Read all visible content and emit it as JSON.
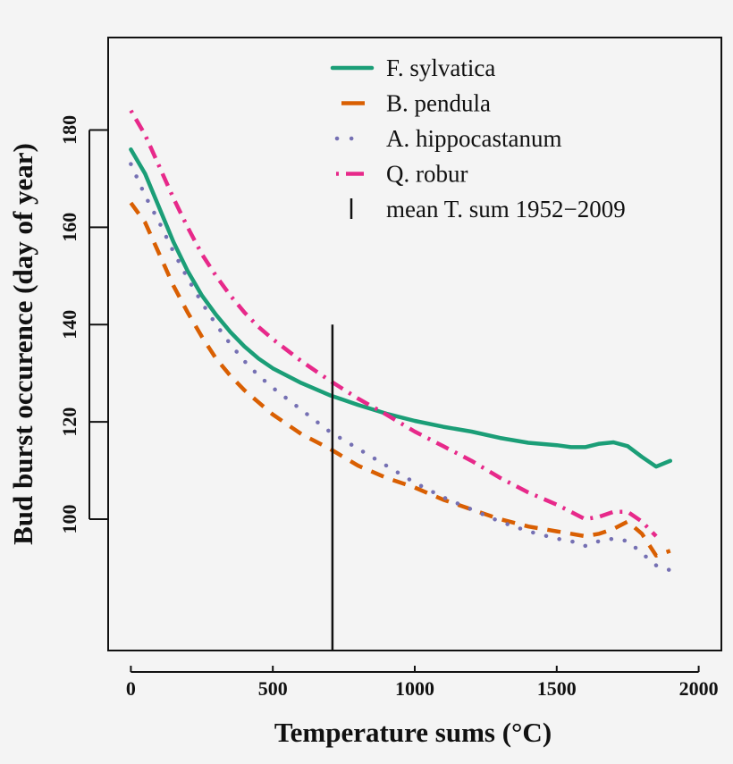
{
  "chart_data": {
    "type": "line",
    "xlabel": "Temperature sums (°C)",
    "ylabel": "Bud burst occurence (day of year)",
    "xlim": [
      -80,
      2080
    ],
    "ylim": [
      73,
      199
    ],
    "x_ticks": [
      0,
      500,
      1000,
      1500,
      2000
    ],
    "x_tick_labels": [
      "0",
      "500",
      "1000",
      "1500",
      "2000"
    ],
    "y_ticks": [
      100,
      120,
      140,
      160,
      180
    ],
    "y_tick_labels": [
      "100",
      "120",
      "140",
      "160",
      "180"
    ],
    "grid": false,
    "legend_position": "top-right",
    "series": [
      {
        "name": "F. sylvatica",
        "color": "#1b9e77",
        "dash": "solid",
        "x": [
          0,
          50,
          100,
          150,
          200,
          250,
          300,
          350,
          400,
          450,
          500,
          600,
          700,
          800,
          900,
          1000,
          1100,
          1200,
          1300,
          1400,
          1500,
          1550,
          1600,
          1650,
          1700,
          1750,
          1800,
          1850,
          1900
        ],
        "y": [
          176,
          171,
          164,
          157,
          151,
          146,
          142,
          138.5,
          135.5,
          133,
          131,
          128,
          125.5,
          123.5,
          121.7,
          120.2,
          119,
          118,
          116.7,
          115.7,
          115.2,
          114.8,
          114.8,
          115.5,
          115.8,
          115,
          112.8,
          110.8,
          112
        ]
      },
      {
        "name": "B. pendula",
        "color": "#d95f02",
        "dash": "dashed",
        "x": [
          0,
          50,
          100,
          150,
          200,
          250,
          300,
          350,
          400,
          450,
          500,
          600,
          700,
          800,
          900,
          1000,
          1100,
          1200,
          1300,
          1400,
          1500,
          1550,
          1600,
          1650,
          1700,
          1750,
          1800,
          1850,
          1900
        ],
        "y": [
          165,
          161,
          154.5,
          148,
          142.5,
          137.5,
          133,
          129.5,
          126.5,
          124,
          121.5,
          117.5,
          114.5,
          111,
          108.5,
          106.5,
          104,
          102,
          100,
          98.5,
          97.5,
          97,
          96.5,
          97,
          98,
          99.5,
          97,
          92.5,
          93.5
        ]
      },
      {
        "name": "A. hippocastanum",
        "color": "#7570b3",
        "dash": "dotted",
        "x": [
          0,
          50,
          100,
          150,
          200,
          250,
          300,
          350,
          400,
          450,
          500,
          600,
          700,
          800,
          900,
          1000,
          1100,
          1200,
          1300,
          1400,
          1500,
          1550,
          1600,
          1650,
          1700,
          1750,
          1800,
          1850,
          1900
        ],
        "y": [
          173,
          166.5,
          161,
          155,
          149.5,
          144.5,
          140,
          136,
          132.5,
          129.5,
          127,
          122.5,
          118,
          114.5,
          111,
          107.5,
          104.5,
          102,
          99.5,
          97.5,
          96,
          95.5,
          94.5,
          95.5,
          96,
          95.5,
          93,
          90.5,
          89.5
        ]
      },
      {
        "name": "Q. robur",
        "color": "#e7298a",
        "dash": "dashdot",
        "x": [
          0,
          50,
          100,
          150,
          200,
          250,
          300,
          350,
          400,
          450,
          500,
          600,
          700,
          800,
          900,
          1000,
          1100,
          1200,
          1300,
          1400,
          1500,
          1550,
          1600,
          1650,
          1700,
          1750,
          1800,
          1850
        ],
        "y": [
          184,
          179,
          172.5,
          166,
          160,
          154.5,
          150,
          146,
          142.5,
          139.5,
          137,
          132.5,
          128.5,
          124.8,
          121.5,
          118,
          115,
          112,
          108.5,
          105.5,
          103,
          101.5,
          100,
          100.5,
          101.5,
          101.5,
          99.5,
          96.5
        ]
      }
    ],
    "vertical_line": {
      "name": "mean T. sum 1952−2009",
      "x": 710,
      "y_range": [
        73,
        140
      ],
      "color": "#111111"
    },
    "legend": [
      "F. sylvatica",
      "B. pendula",
      "A. hippocastanum",
      "Q. robur",
      "mean T. sum 1952−2009"
    ]
  }
}
